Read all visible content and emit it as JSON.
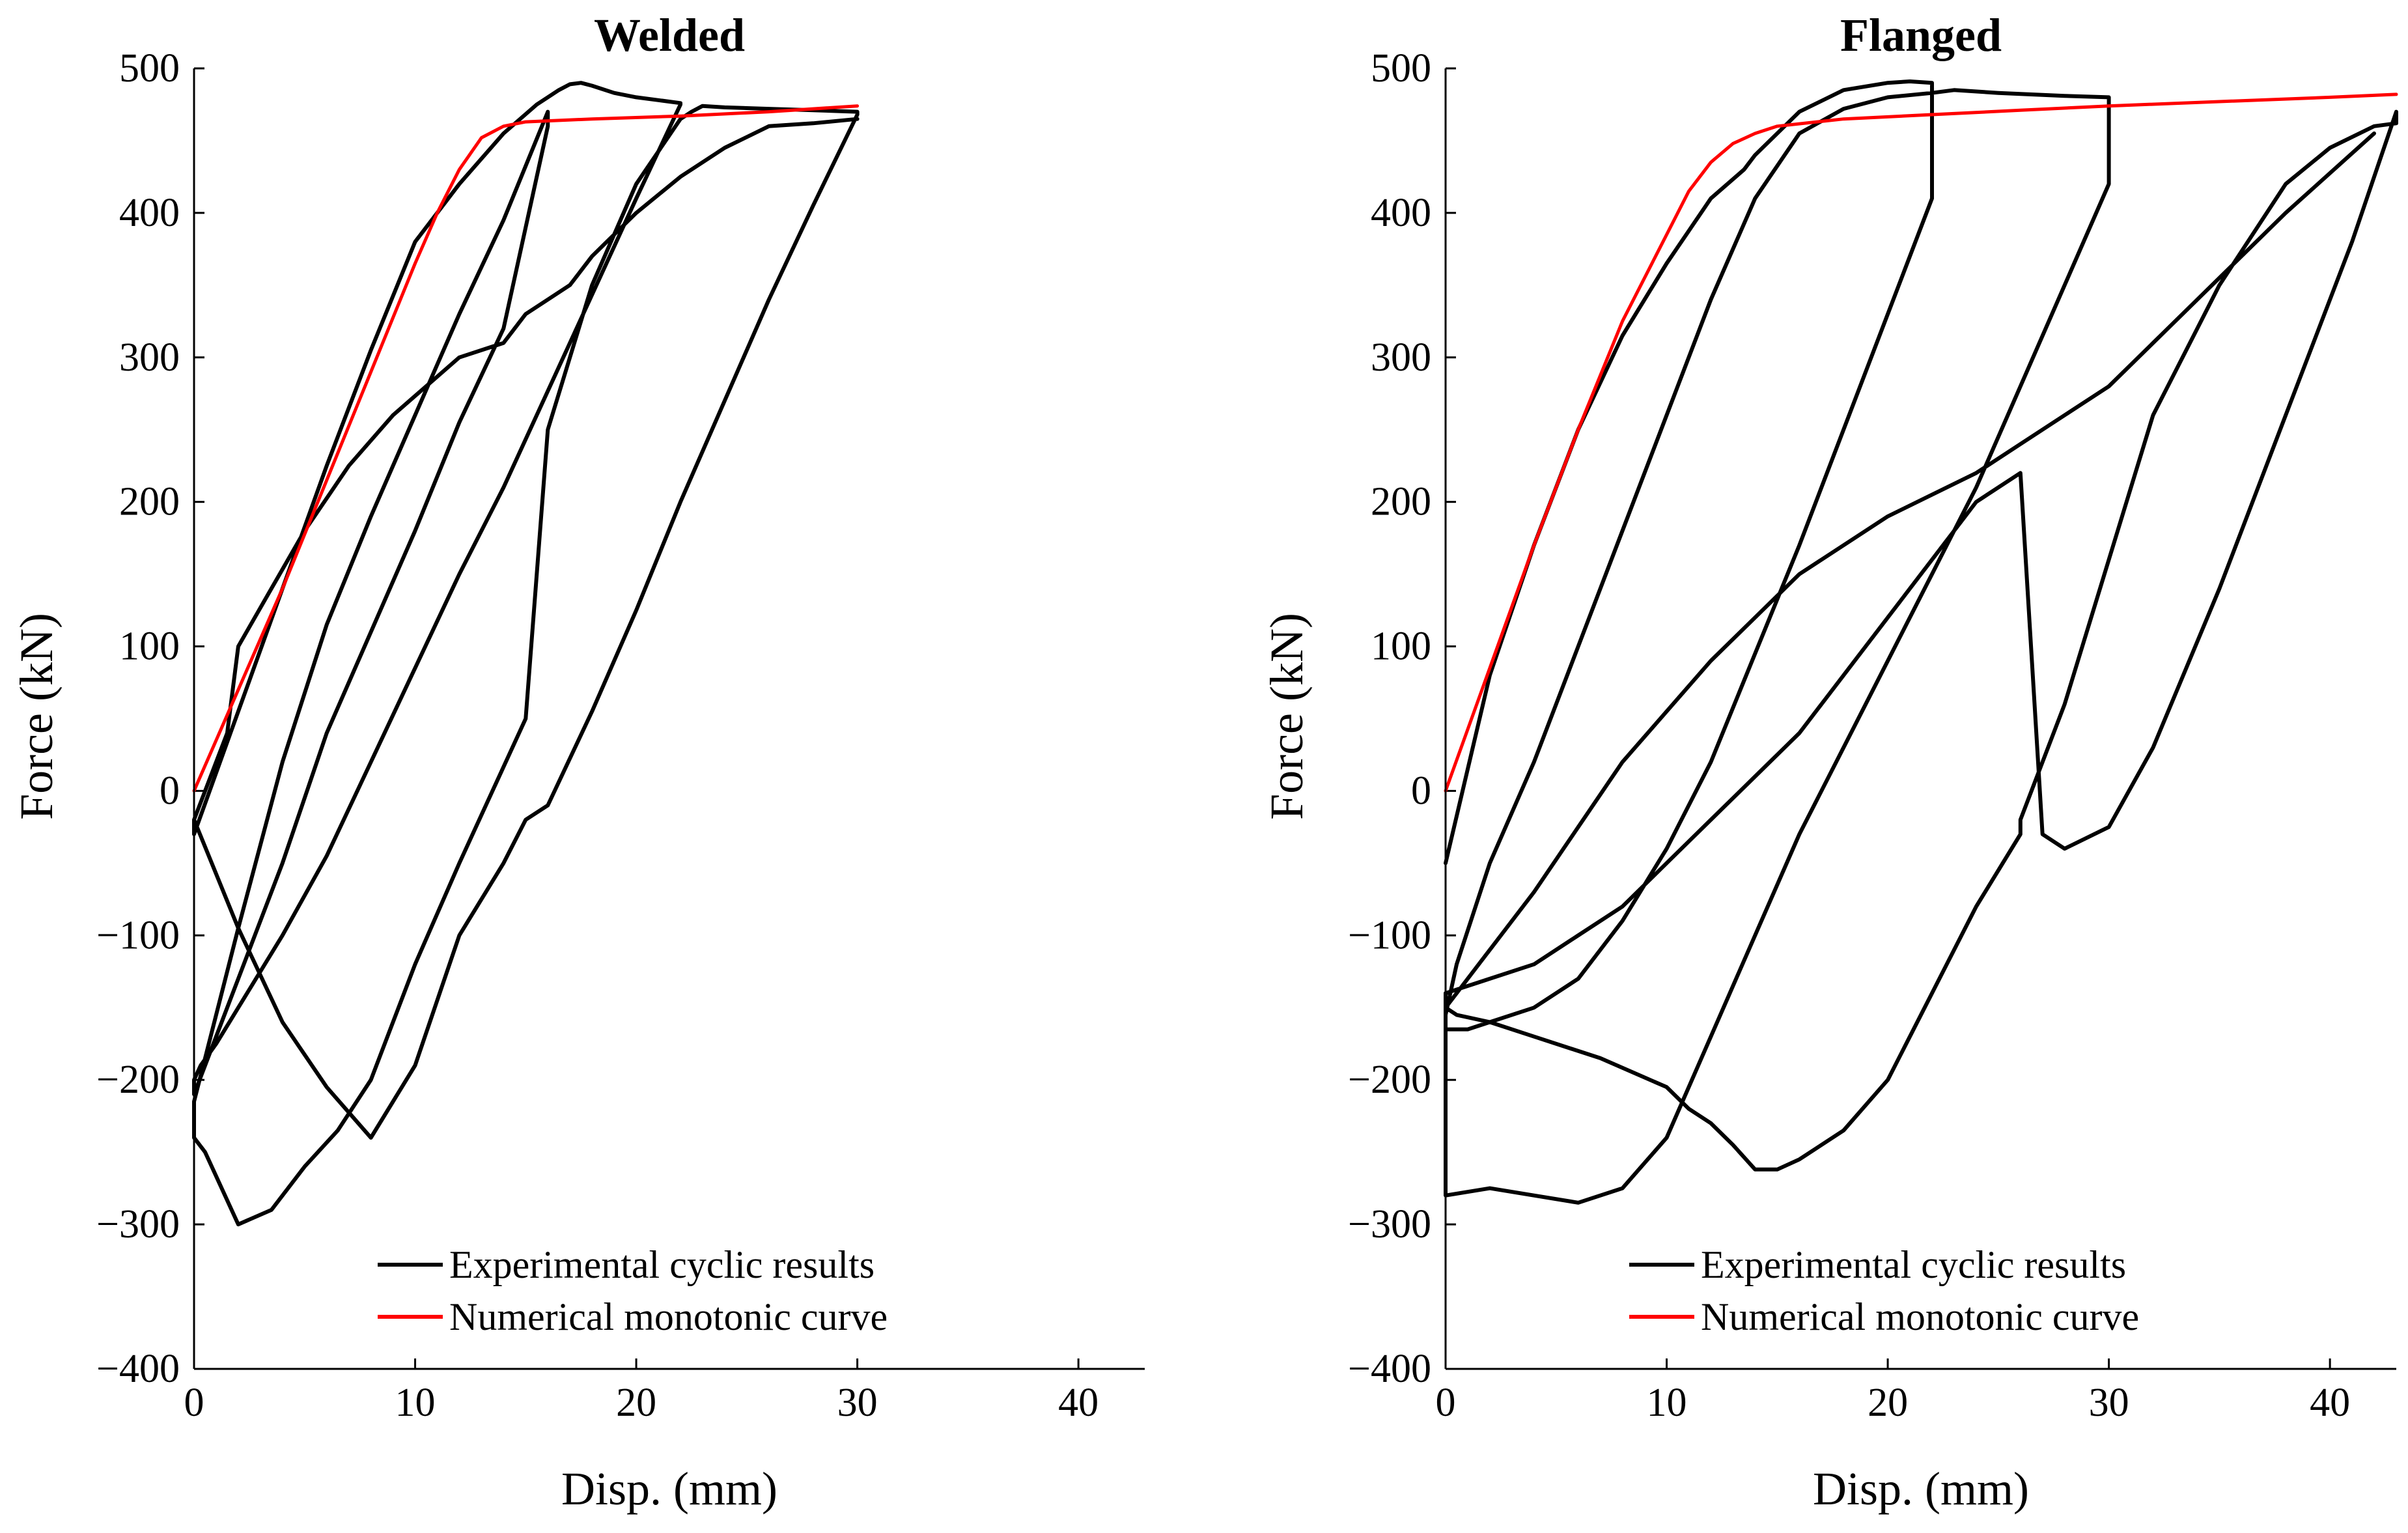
{
  "chart_data": [
    {
      "type": "line",
      "title": "Welded",
      "xlabel": "Disp. (mm)",
      "ylabel": "Force (kN)",
      "xlim": [
        0,
        43
      ],
      "ylim": [
        -400,
        500
      ],
      "xticks": [
        0,
        10,
        20,
        30,
        40
      ],
      "yticks": [
        -400,
        -300,
        -200,
        -100,
        0,
        100,
        200,
        300,
        400,
        500
      ],
      "xtick_labels": [
        "0",
        "10",
        "20",
        "30",
        "40"
      ],
      "ytick_labels": [
        "−400",
        "−300",
        "−200",
        "−100",
        "0",
        "100",
        "200",
        "300",
        "400",
        "500"
      ],
      "grid": false,
      "legend_position": "bottom-right",
      "series": [
        {
          "name": "Experimental cyclic results",
          "color": "#000000",
          "x": [
            0,
            2,
            4,
            6,
            8,
            10,
            12,
            14,
            15.5,
            16,
            16.5,
            17,
            17.5,
            18,
            19,
            20,
            21,
            22,
            22,
            20,
            17,
            14,
            12,
            10,
            8,
            6,
            4,
            2,
            1,
            0.3,
            0,
            0,
            0.5,
            2,
            4,
            6,
            8,
            10,
            12,
            14,
            16,
            16,
            14,
            12,
            10,
            8,
            6,
            4,
            2,
            0,
            0,
            0,
            0.5,
            2,
            3.5,
            5,
            6.5,
            8,
            10,
            12,
            15,
            15.5,
            16,
            18,
            20,
            22,
            22.5,
            23,
            24,
            26,
            28,
            30,
            30,
            28,
            26,
            24,
            22,
            20,
            18,
            16,
            15,
            14,
            12,
            10,
            8,
            6,
            4,
            2,
            0,
            0,
            0,
            0.5,
            1.5,
            2,
            3.5,
            5,
            7,
            9,
            12,
            14,
            15,
            16,
            17,
            18,
            20,
            22,
            24,
            26,
            28,
            30
          ],
          "y": [
            -30,
            55,
            140,
            225,
            305,
            380,
            420,
            455,
            475,
            480,
            485,
            489,
            490,
            488,
            483,
            480,
            478,
            476,
            475,
            410,
            310,
            210,
            150,
            85,
            20,
            -45,
            -100,
            -150,
            -175,
            -190,
            -200,
            -210,
            -190,
            -130,
            -50,
            40,
            110,
            180,
            255,
            320,
            460,
            470,
            395,
            330,
            260,
            190,
            115,
            20,
            -95,
            -215,
            -220,
            -240,
            -250,
            -300,
            -290,
            -260,
            -235,
            -200,
            -120,
            -50,
            50,
            150,
            250,
            350,
            420,
            465,
            470,
            474,
            473,
            472,
            471,
            470,
            468,
            405,
            340,
            270,
            200,
            125,
            55,
            -10,
            -20,
            -50,
            -100,
            -190,
            -240,
            -205,
            -160,
            -95,
            -20,
            -30,
            -20,
            0,
            40,
            100,
            140,
            180,
            225,
            260,
            300,
            310,
            330,
            340,
            350,
            370,
            400,
            425,
            445,
            460,
            462,
            465
          ]
        },
        {
          "name": "Numerical monotonic curve",
          "color": "#ff0000",
          "x": [
            0,
            2,
            4,
            6,
            8,
            10,
            11,
            12,
            13,
            14,
            15,
            18,
            22,
            26,
            30
          ],
          "y": [
            0,
            70,
            140,
            215,
            290,
            365,
            400,
            430,
            452,
            460,
            463,
            465,
            467,
            470,
            474
          ]
        }
      ]
    },
    {
      "type": "line",
      "title": "Flanged",
      "xlabel": "Disp. (mm)",
      "ylabel": "Force (kN)",
      "xlim": [
        0,
        43
      ],
      "ylim": [
        -400,
        500
      ],
      "xticks": [
        0,
        10,
        20,
        30,
        40
      ],
      "yticks": [
        -400,
        -300,
        -200,
        -100,
        0,
        100,
        200,
        300,
        400,
        500
      ],
      "xtick_labels": [
        "0",
        "10",
        "20",
        "30",
        "40"
      ],
      "ytick_labels": [
        "−400",
        "−300",
        "−200",
        "−100",
        "0",
        "100",
        "200",
        "300",
        "400",
        "500"
      ],
      "grid": false,
      "legend_position": "bottom-right",
      "series": [
        {
          "name": "Experimental cyclic results",
          "color": "#000000",
          "x": [
            0,
            2,
            4,
            6,
            8,
            10,
            12,
            13.5,
            14,
            15,
            16,
            18,
            20,
            21,
            22,
            22,
            20,
            18,
            16,
            14,
            12,
            10,
            8,
            6,
            4,
            2,
            1,
            0,
            0,
            0.5,
            2,
            4,
            6,
            8,
            10,
            12,
            14,
            16,
            18,
            20,
            22,
            23,
            25,
            28,
            30,
            30,
            28,
            26,
            24,
            22,
            20,
            18,
            16,
            14,
            12,
            10,
            8,
            6,
            4,
            2,
            0,
            0,
            0,
            0.5,
            2,
            4,
            7,
            10,
            11,
            12,
            13,
            14,
            15,
            16,
            18,
            20,
            22,
            24,
            26,
            26,
            28,
            30,
            32,
            35,
            38,
            40,
            42,
            43,
            43,
            41,
            38,
            35,
            32,
            30,
            28,
            27,
            26,
            24,
            22,
            20,
            18,
            16,
            14,
            12,
            10,
            8,
            6,
            4,
            2,
            0,
            0,
            4,
            8,
            12,
            16,
            20,
            24,
            26,
            30,
            34,
            38,
            42
          ],
          "y": [
            -50,
            80,
            170,
            250,
            315,
            365,
            410,
            430,
            440,
            455,
            470,
            485,
            490,
            491,
            490,
            410,
            330,
            250,
            170,
            95,
            20,
            -40,
            -90,
            -130,
            -150,
            -160,
            -165,
            -165,
            -155,
            -120,
            -50,
            20,
            100,
            180,
            260,
            340,
            410,
            455,
            472,
            480,
            483,
            485,
            483,
            481,
            480,
            420,
            350,
            280,
            210,
            150,
            90,
            30,
            -30,
            -100,
            -170,
            -240,
            -275,
            -285,
            -280,
            -275,
            -280,
            -280,
            -150,
            -155,
            -160,
            -170,
            -185,
            -205,
            -220,
            -230,
            -245,
            -262,
            -262,
            -255,
            -235,
            -200,
            -140,
            -80,
            -30,
            -20,
            60,
            160,
            260,
            350,
            420,
            445,
            460,
            462,
            470,
            380,
            260,
            140,
            30,
            -25,
            -40,
            -30,
            220,
            200,
            160,
            120,
            80,
            40,
            10,
            -20,
            -50,
            -80,
            -100,
            -120,
            -130,
            -140,
            -150,
            -70,
            20,
            90,
            150,
            190,
            220,
            240,
            280,
            340,
            400,
            455
          ]
        },
        {
          "name": "Numerical monotonic curve",
          "color": "#ff0000",
          "x": [
            0,
            2,
            4,
            6,
            8,
            10,
            11,
            12,
            13,
            14,
            15,
            18,
            22,
            26,
            30,
            35,
            40,
            43
          ],
          "y": [
            0,
            85,
            170,
            250,
            325,
            385,
            415,
            435,
            448,
            455,
            460,
            465,
            468,
            471,
            474,
            477,
            480,
            482
          ]
        }
      ]
    }
  ]
}
